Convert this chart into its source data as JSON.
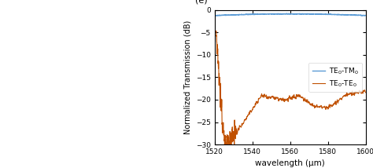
{
  "title_label": "(e)",
  "xlabel": "wavelength (μm)",
  "ylabel": "Normalized Transmission (dB)",
  "xlim": [
    1520,
    1600
  ],
  "ylim": [
    -30,
    0
  ],
  "yticks": [
    0,
    -5,
    -10,
    -15,
    -20,
    -25,
    -30
  ],
  "xticks": [
    1520,
    1540,
    1560,
    1580,
    1600
  ],
  "line1_color": "#5b9bd5",
  "line2_color": "#c05000",
  "legend1": "TE$_0$-TM$_0$",
  "legend2": "TE$_0$-TE$_0$",
  "background_color": "#ffffff",
  "left_bg": "#d0d0d0",
  "fig_width": 4.74,
  "fig_height": 2.14
}
